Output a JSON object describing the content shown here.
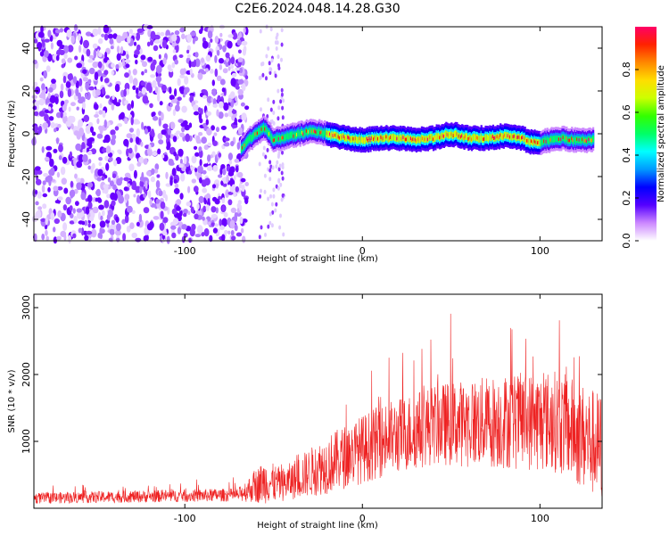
{
  "title": "C2E6.2024.048.14.28.G30",
  "chart_data": [
    {
      "type": "heatmap",
      "xlabel": "Height of straight line (km)",
      "ylabel": "Frequency (Hz)",
      "xlim": [
        -185,
        135
      ],
      "ylim": [
        -50,
        50
      ],
      "x_ticks": [
        -100,
        0,
        100
      ],
      "y_ticks": [
        -40,
        -20,
        0,
        20,
        40
      ],
      "colorbar": {
        "label": "Normalized spectral amplitude",
        "range": [
          0.0,
          1.0
        ],
        "ticks": [
          "0.0",
          "0.2",
          "0.4",
          "0.6",
          "0.8"
        ],
        "colors": [
          "#ffffff",
          "#cc88ff",
          "#5500ff",
          "#0000ff",
          "#0099ff",
          "#00ffff",
          "#00ff66",
          "#33ff00",
          "#ccff00",
          "#ffdd00",
          "#ff8800",
          "#ff2200",
          "#ff0066"
        ]
      },
      "noise_region": {
        "x_range": [
          -185,
          -65
        ],
        "f_range": [
          -50,
          50
        ]
      },
      "ridge": [
        {
          "x": -68,
          "f": -7
        },
        {
          "x": -64,
          "f": -3
        },
        {
          "x": -60,
          "f": 0
        },
        {
          "x": -55,
          "f": 3
        },
        {
          "x": -50,
          "f": -3
        },
        {
          "x": -45,
          "f": -2
        },
        {
          "x": -40,
          "f": -1
        },
        {
          "x": -35,
          "f": 0
        },
        {
          "x": -30,
          "f": 1
        },
        {
          "x": -25,
          "f": 1
        },
        {
          "x": -20,
          "f": 0
        },
        {
          "x": -10,
          "f": -2
        },
        {
          "x": 0,
          "f": -3
        },
        {
          "x": 10,
          "f": -2
        },
        {
          "x": 20,
          "f": -2
        },
        {
          "x": 30,
          "f": -3
        },
        {
          "x": 40,
          "f": -2
        },
        {
          "x": 50,
          "f": 0
        },
        {
          "x": 60,
          "f": -2
        },
        {
          "x": 70,
          "f": -2
        },
        {
          "x": 80,
          "f": -1
        },
        {
          "x": 90,
          "f": -2
        },
        {
          "x": 95,
          "f": -4
        },
        {
          "x": 100,
          "f": -4
        },
        {
          "x": 110,
          "f": -2
        },
        {
          "x": 120,
          "f": -3
        },
        {
          "x": 130,
          "f": -3
        }
      ]
    },
    {
      "type": "line",
      "xlabel": "Height of straight line (km)",
      "ylabel": "SNR (10 * v/v)",
      "xlim": [
        -185,
        135
      ],
      "ylim": [
        0,
        3200
      ],
      "x_ticks": [
        -100,
        0,
        100
      ],
      "y_ticks": [
        1000,
        2000,
        3000
      ],
      "series": [
        {
          "color": "#ee2222",
          "envelope": [
            {
              "x": -185,
              "base": 150,
              "amp": 150
            },
            {
              "x": -70,
              "base": 200,
              "amp": 180
            },
            {
              "x": -55,
              "base": 400,
              "amp": 600
            },
            {
              "x": -45,
              "base": 350,
              "amp": 450
            },
            {
              "x": -20,
              "base": 650,
              "amp": 800
            },
            {
              "x": 10,
              "base": 1000,
              "amp": 1000
            },
            {
              "x": 40,
              "base": 1250,
              "amp": 1100
            },
            {
              "x": 80,
              "base": 1300,
              "amp": 1300
            },
            {
              "x": 110,
              "base": 1300,
              "amp": 1400
            },
            {
              "x": 135,
              "base": 900,
              "amp": 1500
            }
          ]
        }
      ]
    }
  ]
}
